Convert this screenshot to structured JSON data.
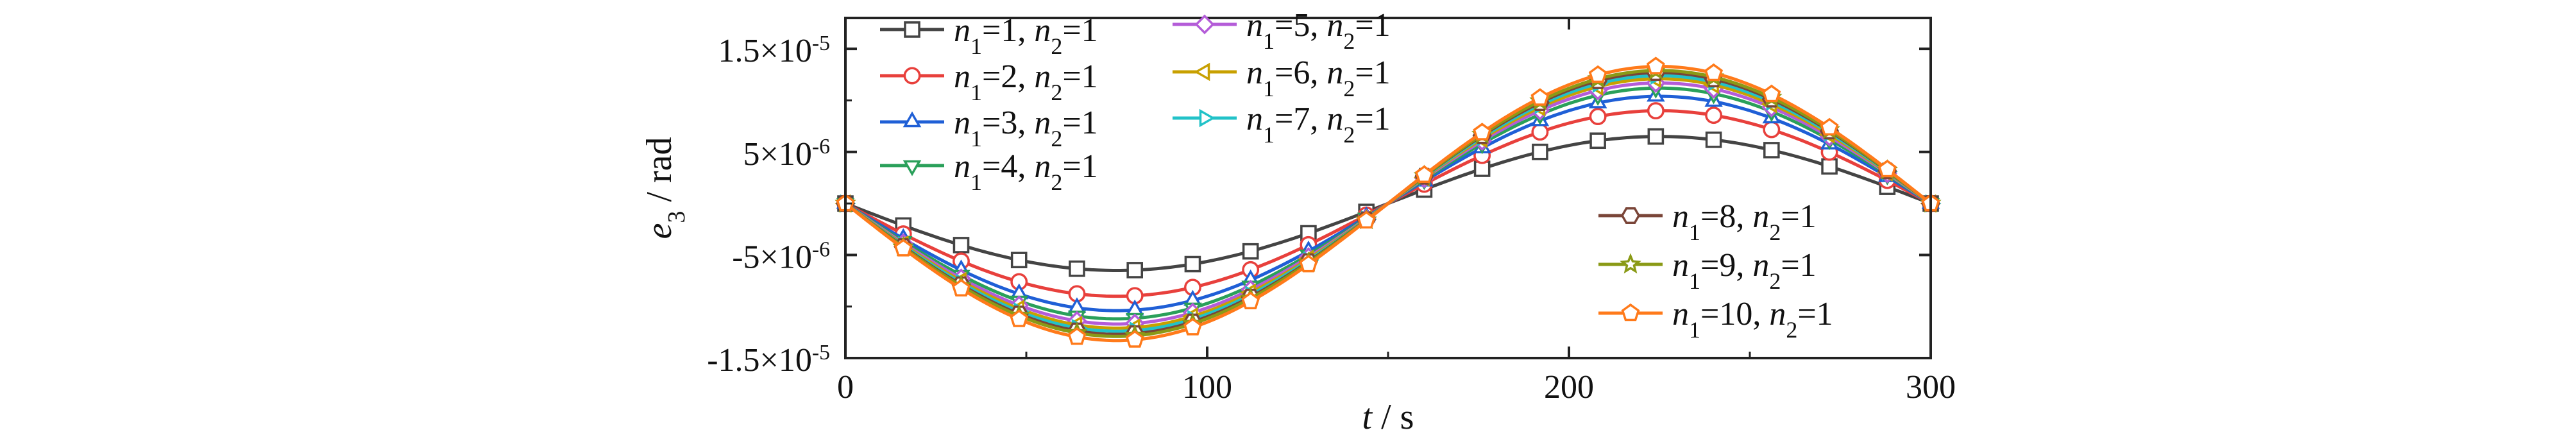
{
  "chart_data": {
    "type": "line",
    "xlabel": "t / s",
    "ylabel": "e3 / rad",
    "xlim": [
      0,
      300
    ],
    "ylim": [
      -1.5e-05,
      1.8e-05
    ],
    "x_ticks": [
      0,
      100,
      200,
      300
    ],
    "x_tick_labels": [
      "0",
      "100",
      "200",
      "300"
    ],
    "y_ticks": [
      -1.5e-05,
      -5e-06,
      5e-06,
      1.5e-05
    ],
    "y_tick_labels": [
      "-1.5×10-5",
      "-5×10-6",
      "5×10-6",
      "1.5×10-5"
    ],
    "grid": false,
    "legend_position": "top-left and lower-right",
    "markers_x": [
      0,
      16,
      32,
      48,
      64,
      80,
      96,
      112,
      128,
      144,
      160,
      176,
      192,
      208,
      224,
      240,
      256,
      272,
      288,
      300
    ],
    "series": [
      {
        "name": "n1=1, n2=1",
        "amplitude": 6.5e-06,
        "color": "#444444",
        "marker": "square"
      },
      {
        "name": "n1=2, n2=1",
        "amplitude": 9e-06,
        "color": "#e8403c",
        "marker": "circle"
      },
      {
        "name": "n1=3, n2=1",
        "amplitude": 1.04e-05,
        "color": "#1f5fd6",
        "marker": "triangle-up"
      },
      {
        "name": "n1=4, n2=1",
        "amplitude": 1.12e-05,
        "color": "#2aa05a",
        "marker": "triangle-down"
      },
      {
        "name": "n1=5, n2=1",
        "amplitude": 1.17e-05,
        "color": "#b45cd8",
        "marker": "diamond"
      },
      {
        "name": "n1=6, n2=1",
        "amplitude": 1.21e-05,
        "color": "#c8a000",
        "marker": "triangle-left"
      },
      {
        "name": "n1=7, n2=1",
        "amplitude": 1.24e-05,
        "color": "#22c2c8",
        "marker": "triangle-right"
      },
      {
        "name": "n1=8, n2=1",
        "amplitude": 1.27e-05,
        "color": "#7a4538",
        "marker": "hexagon"
      },
      {
        "name": "n1=9, n2=1",
        "amplitude": 1.29e-05,
        "color": "#8a9a16",
        "marker": "star"
      },
      {
        "name": "n1=10, n2=1",
        "amplitude": 1.33e-05,
        "color": "#ff7a1a",
        "marker": "pentagon"
      }
    ]
  }
}
